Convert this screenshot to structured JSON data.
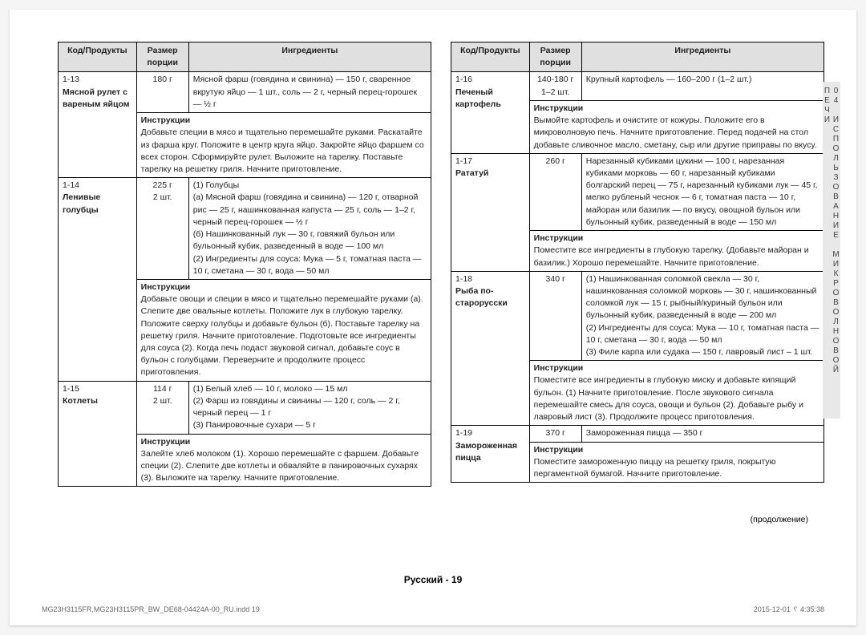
{
  "headers": {
    "code": "Код/Продукты",
    "portion": "Размер порции",
    "ingredients": "Ингредиенты"
  },
  "instructions_label": "Инструкции",
  "continued": "(продолжение)",
  "page_label": "Русский - 19",
  "section_tab": "04 ИСПОЛЬЗОВАНИЕ МИКРОВОЛНОВОЙ ПЕЧИ",
  "foot_left": "MG23H3115FR,MG23H3115PR_BW_DE68-04424A-00_RU.indd   19",
  "foot_right": "2015-12-01   ␦ 4:35:38",
  "left": {
    "r1_code": "1-13",
    "r1_name1": "Мясной рулет с",
    "r1_name2": "вареным яйцом",
    "r1_portion": "180 г",
    "r1_ing": "Мясной фарш (говядина и свинина) — 150 г, сваренное вкрутую яйцо — 1 шт., соль — 2 г, черный перец-горошек — ½ г",
    "r1_instr": "Добавьте специи в мясо и тщательно перемешайте руками. Раскатайте из фарша круг. Положите в центр круга яйцо. Закройте яйцо фаршем со всех сторон. Сформируйте рулет. Выложите на тарелку. Поставьте тарелку на решетку гриля. Начните приготовление.",
    "r2_code": "1-14",
    "r2_name1": "Ленивые",
    "r2_name2": "голубцы",
    "r2_portion1": "225 г",
    "r2_portion2": "2 шт.",
    "r2_ing": "(1) Голубцы\n(a) Мясной фарш (говядина и свинина) — 120 г, отварной рис — 25 г, нашинкованная капуста — 25 г, соль — 1–2 г, черный перец-горошек — ½ г\n(б) Нашинкованный лук — 30 г, говяжий бульон или бульонный кубик, разведенный в воде — 100 мл\n(2) Ингредиенты для соуса: Мука — 5 г, томатная паста — 10 г, сметана — 30 г, вода — 50 мл",
    "r2_instr": "Добавьте овощи и специи в мясо и тщательно перемешайте руками (a). Слепите две овальные котлеты. Положите лук в глубокую тарелку. Положите сверху голубцы и добавьте бульон (б). Поставьте тарелку на решетку гриля. Начните приготовление. Подготовьте все ингредиенты для соуса (2). Когда печь подаст звуковой сигнал, добавьте соус в бульон с голубцами. Переверните и продолжите процесс приготовления.",
    "r3_code": "1-15",
    "r3_name": "Котлеты",
    "r3_portion1": "114 г",
    "r3_portion2": "2 шт.",
    "r3_ing": "(1) Белый хлеб — 10 г, молоко — 15 мл\n(2) Фарш из говядины и свинины — 120 г, соль — 2 г, черный перец — 1 г\n(3) Панировочные сухари — 5 г",
    "r3_instr": "Залейте хлеб молоком (1). Хорошо перемешайте с фаршем. Добавьте специи (2). Слепите две котлеты и обваляйте в панировочных сухарях (3). Выложите на тарелку. Начните приготовление."
  },
  "right": {
    "r1_code": "1-16",
    "r1_name1": "Печеный",
    "r1_name2": "картофель",
    "r1_portion1": "140-180 г",
    "r1_portion2": "1–2 шт.",
    "r1_ing": "Крупный картофель — 160–200 г (1–2 шт.)",
    "r1_instr": "Вымойте картофель и очистите от кожуры. Положите его в микроволновую печь. Начните приготовление. Перед подачей на стол добавьте сливочное масло, сметану, сыр или другие приправы по вкусу.",
    "r2_code": "1-17",
    "r2_name": "Рататуй",
    "r2_portion": "260 г",
    "r2_ing": "Нарезанный кубиками цукини — 100 г, нарезанная кубиками морковь — 60 г, нарезанный кубиками болгарский перец — 75 г, нарезанный кубиками лук — 45 г, мелко рубленый чеснок — 6 г, томатная паста — 10 г, майоран или базилик — по вкусу, овощной бульон или бульонный кубик, разведенный в воде — 150 мл",
    "r2_instr": "Поместите все ингредиенты в глубокую тарелку. (Добавьте майоран и базилик.) Хорошо перемешайте. Начните приготовление.",
    "r3_code": "1-18",
    "r3_name1": "Рыба по-",
    "r3_name2": "старорусски",
    "r3_portion": "340 г",
    "r3_ing": "(1) Нашинкованная соломкой свекла — 30 г, нашинкованная соломкой морковь — 30 г, нашинкованный соломкой лук — 15 г, рыбный/куриный бульон или бульонный кубик, разведенный в воде — 200 мл\n(2) Ингредиенты для соуса: Мука — 10 г, томатная паста — 10 г, сметана — 30 г, вода — 50 мл\n(3) Филе карпа или судака — 150 г, лавровый лист – 1 шт.",
    "r3_instr": "Поместите все ингредиенты в глубокую миску и добавьте кипящий бульон. (1) Начните приготовление. После звукового сигнала перемешайте смесь для соуса, овощи и бульон (2). Добавьте рыбу и лавровый лист (3). Продолжите процесс приготовления.",
    "r4_code": "1-19",
    "r4_name1": "Замороженная",
    "r4_name2": "пицца",
    "r4_portion": "370 г",
    "r4_ing": "Замороженная пицца — 350 г",
    "r4_instr": "Поместите замороженную пиццу на решетку гриля, покрытую пергаментной бумагой. Начните приготовление."
  }
}
